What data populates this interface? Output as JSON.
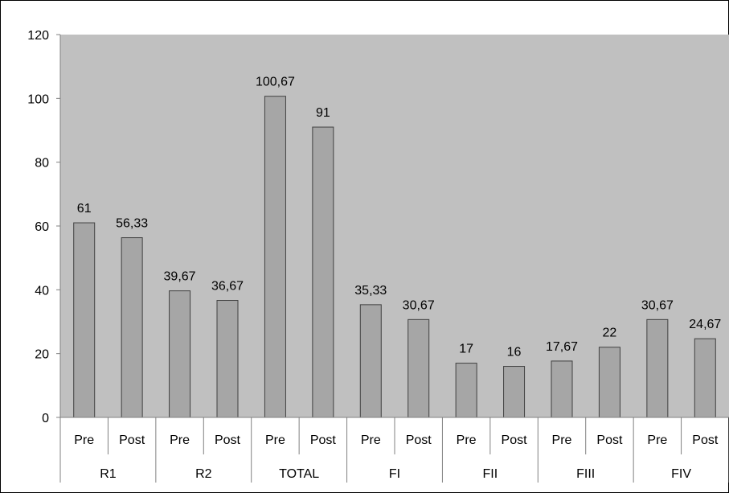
{
  "chart_data": {
    "type": "bar",
    "groups": [
      "R1",
      "R2",
      "TOTAL",
      "FI",
      "FII",
      "FIII",
      "FIV"
    ],
    "sub_categories": [
      "Pre",
      "Post"
    ],
    "values": [
      61,
      56.33,
      39.67,
      36.67,
      100.67,
      91,
      35.33,
      30.67,
      17,
      16,
      17.67,
      22,
      30.67,
      24.67
    ],
    "data_labels": [
      "61",
      "56,33",
      "39,67",
      "36,67",
      "100,67",
      "91",
      "35,33",
      "30,67",
      "17",
      "16",
      "17,67",
      "22",
      "30,67",
      "24,67"
    ],
    "y_ticks": [
      "0",
      "20",
      "40",
      "60",
      "80",
      "100",
      "120"
    ],
    "ylim": [
      0,
      120
    ],
    "title": "",
    "xlabel": "",
    "ylabel": "",
    "grid": false,
    "legend": "none",
    "colors": {
      "plot_background": "#c0c0c0",
      "bar_fill": "#a6a6a6",
      "bar_stroke": "#404040",
      "axis": "#808080"
    }
  }
}
